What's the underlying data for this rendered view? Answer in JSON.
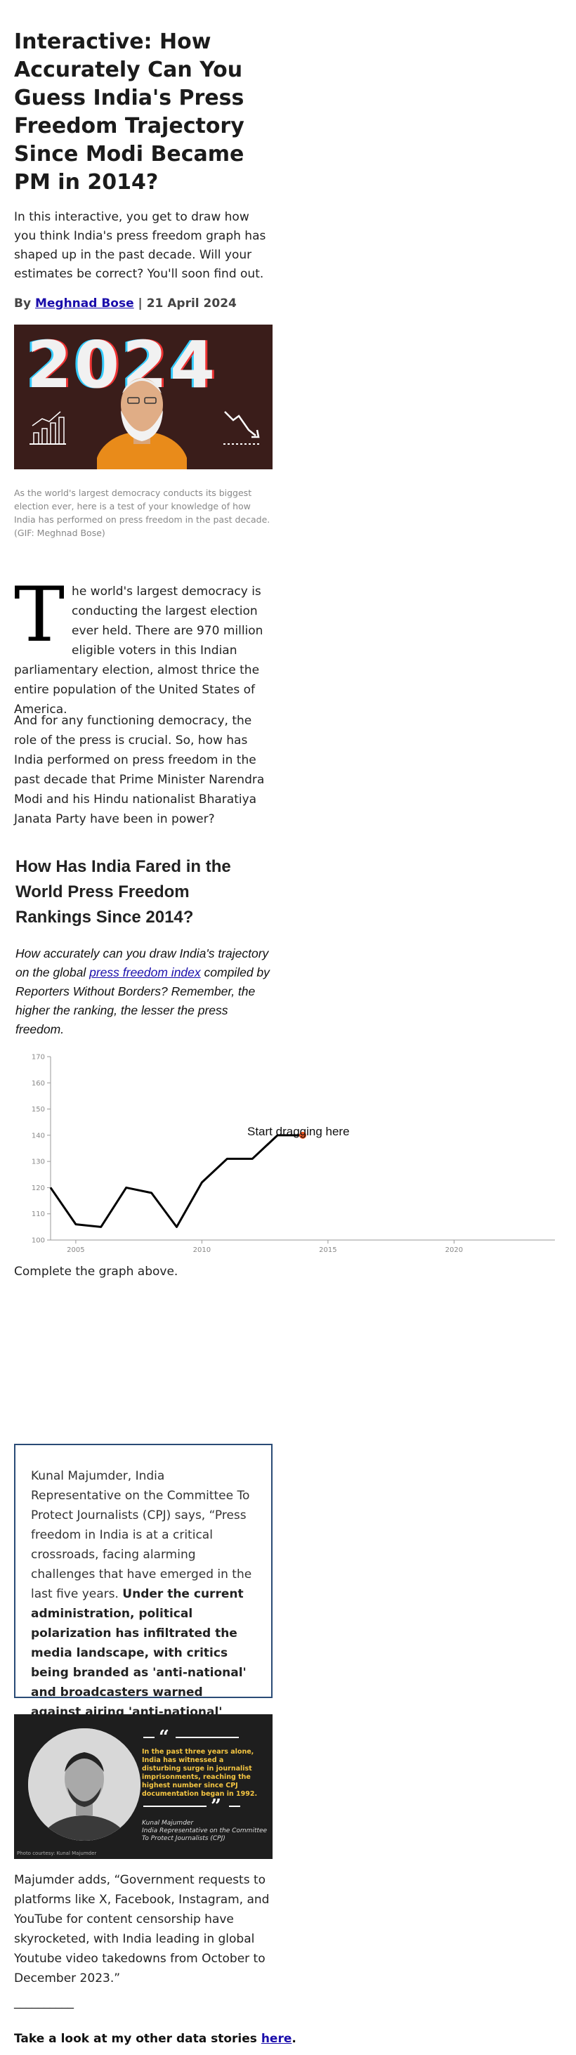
{
  "article": {
    "title": "Interactive: How Accurately Can You Guess India's Press Freedom Trajectory Since Modi Became PM in 2014?",
    "intro": "In this interactive, you get to draw how you think India's press freedom graph has shaped up in the past decade. Will your estimates be correct? You'll soon find out.",
    "byline_prefix": "By ",
    "author": "Meghnad Bose",
    "byline_sep": " | ",
    "date": "21 April 2024",
    "hero_year": "2024",
    "caption": "As the world's largest democracy conducts its biggest election ever, here is a test of your knowledge of how India has performed on press freedom in the past decade. (GIF: Meghnad Bose)",
    "dropcap": "T",
    "para1": "he world's largest democracy is conducting the largest election ever held. There are 970 million eligible voters in this Indian parliamentary election, almost thrice the entire population of the United States of America.",
    "para2": "And for any functioning democracy, the role of the press is crucial. So, how has India performed on press freedom in the past decade that Prime Minister Narendra Modi and his Hindu nationalist Bharatiya Janata Party have been in power?",
    "subheading": "How Has India Fared in the World Press Freedom Rankings Since 2014?",
    "italic_before": "How accurately can you draw India's trajectory on the global ",
    "italic_link": "press freedom index",
    "italic_after": " compiled by Reporters Without Borders? Remember, the higher the ranking, the lesser the press freedom.",
    "complete_text": "Complete the graph above.",
    "quote_plain": "Kunal Majumder, India Representative on the Committee To Protect Journalists (CPJ) says, “Press freedom in India is at a critical crossroads, facing alarming challenges that have emerged in the last five years. ",
    "quote_bold": "Under the current administration, political polarization has infiltrated the media landscape, with critics being branded as 'anti-national' and broadcasters warned against airing 'anti-national' content.”",
    "portrait_quote": "In the past three years alone, India has witnessed a disturbing surge in journalist imprisonments, reaching the highest number since CPJ documentation began in 1992.",
    "portrait_name": "Kunal Majumder",
    "portrait_role": "India Representative on the Committee To Protect Journalists (CPJ)",
    "portrait_credit": "Photo courtesy: Kunal Majumder",
    "para3": "Majumder adds, “Government requests to platforms like X, Facebook, Instagram, and YouTube for content censorship have skyrocketed, with India leading in global Youtube video takedowns from October to December 2023.”",
    "divider": "__________",
    "footer_before": "Take a look at my other data stories ",
    "footer_link": "here",
    "footer_after": "."
  },
  "colors": {
    "link": "#1a0dab",
    "box_border": "#2a4b76",
    "drag_dot": "#e8531f",
    "hero_bg": "#3a1d1a"
  },
  "chart_data": {
    "type": "line",
    "x": [
      2004,
      2005,
      2006,
      2007,
      2008,
      2009,
      2010,
      2011,
      2012,
      2013,
      2014
    ],
    "series": [
      {
        "values": [
          120,
          106,
          105,
          120,
          118,
          105,
          122,
          131,
          131,
          140,
          140
        ]
      }
    ],
    "xlim": [
      2004,
      2024
    ],
    "ylim": [
      100,
      170
    ],
    "xticks": [
      2005,
      2010,
      2015,
      2020
    ],
    "yticks": [
      100,
      110,
      120,
      130,
      140,
      150,
      160,
      170
    ],
    "annotation": "Start dragging here",
    "grid": false
  }
}
